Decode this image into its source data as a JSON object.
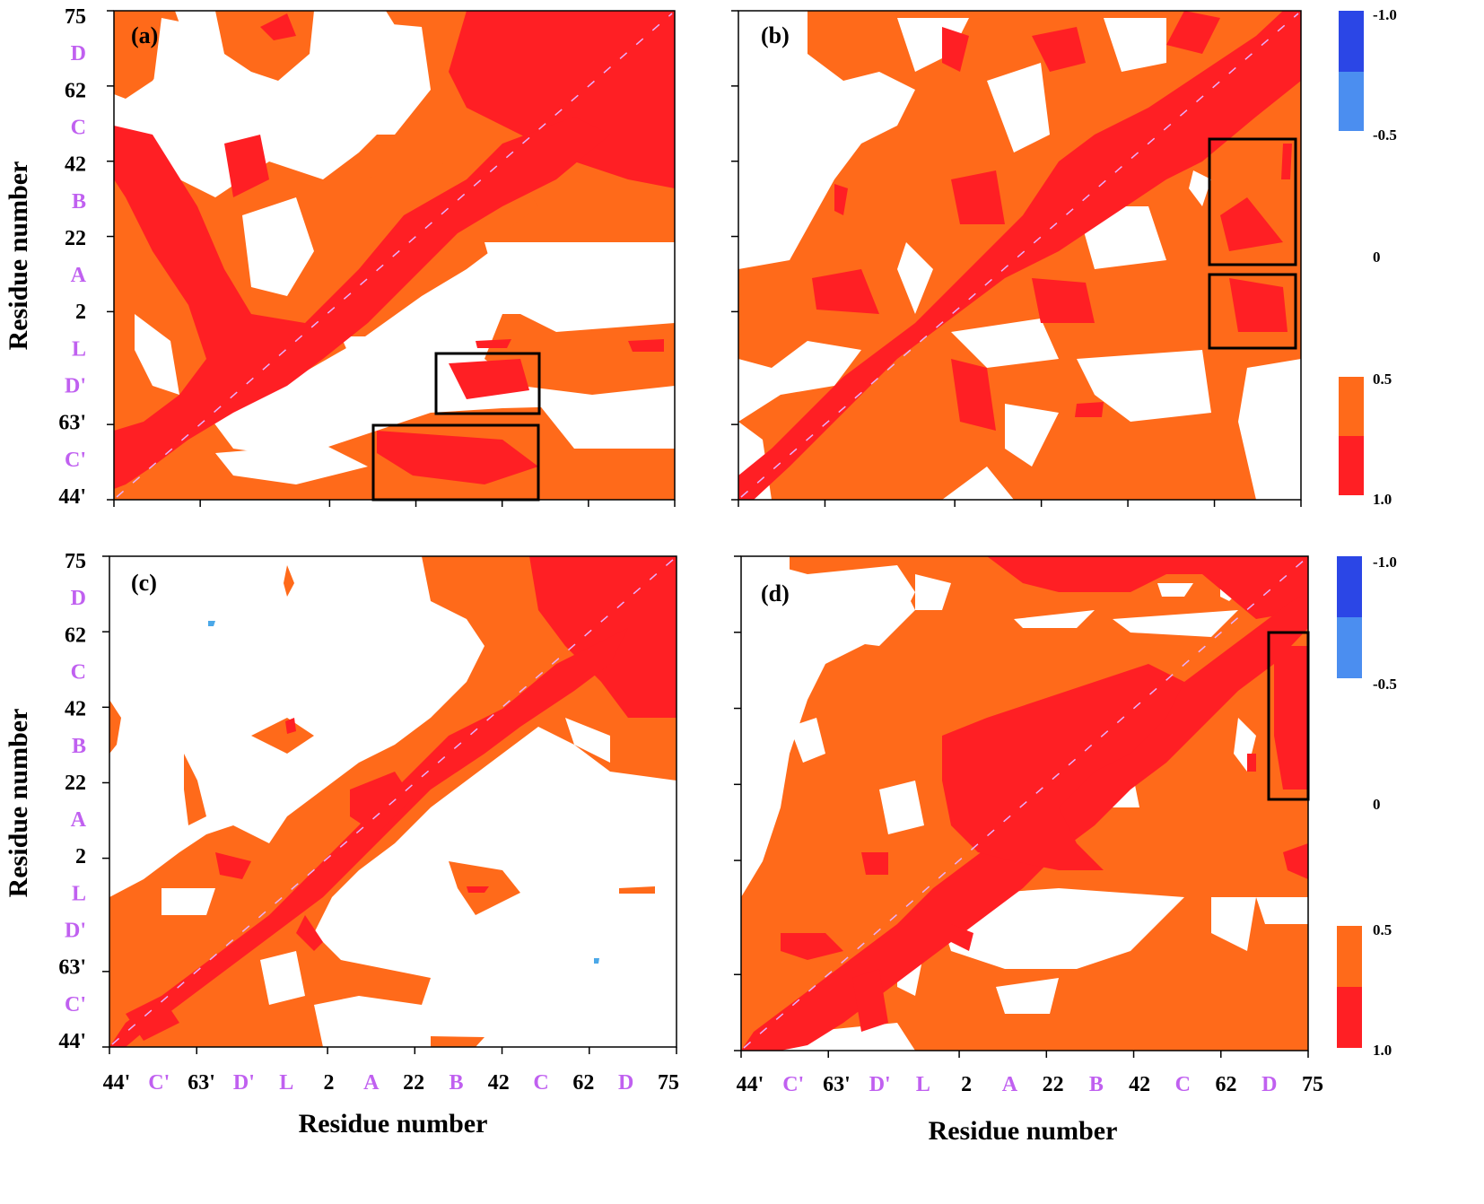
{
  "figure": {
    "axis_title": "Residue number",
    "colorbar_top": {
      "ticks": [
        "-1.0",
        "-0.5",
        "0"
      ],
      "colors": [
        "#2b46e6",
        "#4b8ef0"
      ]
    },
    "colorbar_bottom": {
      "ticks": [
        "0.5",
        "1.0"
      ],
      "colors": [
        "#ff6a1a",
        "#ff1f24"
      ]
    },
    "colors": {
      "white": "#ffffff",
      "orange": "#ff6a1a",
      "red": "#ff1f24",
      "tick_black": "#000000",
      "tick_purple": "#c060f0",
      "diagonal": "#e8b0ff"
    }
  },
  "chart_data": [
    {
      "type": "heatmap",
      "panel_label": "(a)",
      "xlabel": "Residue number",
      "ylabel": "Residue number",
      "tick_labels": [
        {
          "text": "44'",
          "kind": "number"
        },
        {
          "text": "C'",
          "kind": "segment"
        },
        {
          "text": "63'",
          "kind": "number"
        },
        {
          "text": "D'",
          "kind": "segment"
        },
        {
          "text": "L",
          "kind": "segment"
        },
        {
          "text": "2",
          "kind": "number"
        },
        {
          "text": "A",
          "kind": "segment"
        },
        {
          "text": "22",
          "kind": "number"
        },
        {
          "text": "B",
          "kind": "segment"
        },
        {
          "text": "42",
          "kind": "number"
        },
        {
          "text": "C",
          "kind": "segment"
        },
        {
          "text": "62",
          "kind": "number"
        },
        {
          "text": "D",
          "kind": "segment"
        },
        {
          "text": "75",
          "kind": "number"
        }
      ],
      "colorscale": "correlation (-1.0 to 1.0)",
      "grid": false
    },
    {
      "type": "heatmap",
      "panel_label": "(b)",
      "xlabel": "",
      "ylabel": "",
      "colorscale": "correlation (-1.0 to 1.0)",
      "grid": false
    },
    {
      "type": "heatmap",
      "panel_label": "(c)",
      "xlabel": "Residue number",
      "ylabel": "Residue number",
      "colorscale": "correlation (-1.0 to 1.0)",
      "grid": false
    },
    {
      "type": "heatmap",
      "panel_label": "(d)",
      "xlabel": "Residue number",
      "ylabel": "",
      "colorscale": "correlation (-1.0 to 1.0)",
      "grid": false
    }
  ]
}
